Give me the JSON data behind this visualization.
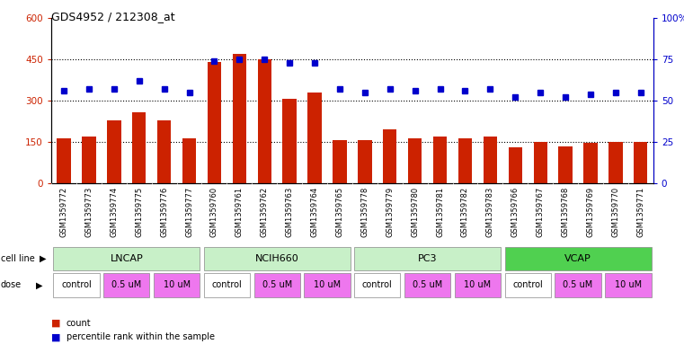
{
  "title": "GDS4952 / 212308_at",
  "samples": [
    "GSM1359772",
    "GSM1359773",
    "GSM1359774",
    "GSM1359775",
    "GSM1359776",
    "GSM1359777",
    "GSM1359760",
    "GSM1359761",
    "GSM1359762",
    "GSM1359763",
    "GSM1359764",
    "GSM1359765",
    "GSM1359778",
    "GSM1359779",
    "GSM1359780",
    "GSM1359781",
    "GSM1359782",
    "GSM1359783",
    "GSM1359766",
    "GSM1359767",
    "GSM1359768",
    "GSM1359769",
    "GSM1359770",
    "GSM1359771"
  ],
  "counts": [
    162,
    170,
    230,
    258,
    230,
    163,
    440,
    470,
    450,
    308,
    330,
    158,
    158,
    195,
    163,
    170,
    163,
    170,
    132,
    150,
    133,
    148,
    150,
    150
  ],
  "percentiles": [
    56,
    57,
    57,
    62,
    57,
    55,
    74,
    75,
    75,
    73,
    73,
    57,
    55,
    57,
    56,
    57,
    56,
    57,
    52,
    55,
    52,
    54,
    55,
    55
  ],
  "bar_color": "#CC2200",
  "dot_color": "#0000CC",
  "left_ylim": [
    0,
    600
  ],
  "right_ylim": [
    0,
    100
  ],
  "left_yticks": [
    0,
    150,
    300,
    450,
    600
  ],
  "right_yticks": [
    0,
    25,
    50,
    75,
    100
  ],
  "right_yticklabels": [
    "0",
    "25",
    "50",
    "75",
    "100%"
  ],
  "bg_color": "#ffffff",
  "plot_bg": "#ffffff",
  "cell_line_names": [
    "LNCAP",
    "NCIH660",
    "PC3",
    "VCAP"
  ],
  "cell_line_starts": [
    0,
    6,
    12,
    18
  ],
  "cell_line_ends": [
    6,
    12,
    18,
    24
  ],
  "cell_line_colors": [
    "#c8f0c8",
    "#c8f0c8",
    "#c8f0c8",
    "#50d050"
  ],
  "dose_labels": [
    "control",
    "0.5 uM",
    "10 uM",
    "control",
    "0.5 uM",
    "10 uM",
    "control",
    "0.5 uM",
    "10 uM",
    "control",
    "0.5 uM",
    "10 uM"
  ],
  "dose_starts": [
    0,
    2,
    4,
    6,
    8,
    10,
    12,
    14,
    16,
    18,
    20,
    22
  ],
  "dose_ends": [
    2,
    4,
    6,
    8,
    10,
    12,
    14,
    16,
    18,
    20,
    22,
    24
  ],
  "dose_colors": [
    "#ffffff",
    "#ee77ee",
    "#ee77ee",
    "#ffffff",
    "#ee77ee",
    "#ee77ee",
    "#ffffff",
    "#ee77ee",
    "#ee77ee",
    "#ffffff",
    "#ee77ee",
    "#ee77ee"
  ],
  "xticklabel_bg": "#d8d8d8"
}
